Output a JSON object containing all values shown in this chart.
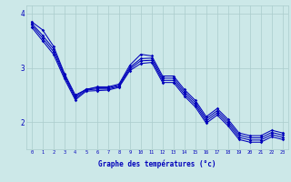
{
  "xlabel": "Graphe des températures (°c)",
  "background_color": "#cce8e8",
  "grid_color": "#aacccc",
  "line_color": "#0000bb",
  "x": [
    0,
    1,
    2,
    3,
    4,
    5,
    6,
    7,
    8,
    9,
    10,
    11,
    12,
    13,
    14,
    15,
    16,
    17,
    18,
    19,
    20,
    21,
    22,
    23
  ],
  "line1": [
    3.85,
    3.7,
    3.4,
    2.9,
    2.5,
    2.6,
    2.65,
    2.65,
    2.7,
    3.05,
    3.25,
    3.22,
    2.85,
    2.85,
    2.6,
    2.4,
    2.1,
    2.25,
    2.05,
    1.8,
    1.75,
    1.75,
    1.85,
    1.8
  ],
  "line2": [
    3.82,
    3.6,
    3.35,
    2.87,
    2.47,
    2.61,
    2.63,
    2.63,
    2.68,
    3.01,
    3.17,
    3.18,
    2.81,
    2.81,
    2.56,
    2.36,
    2.06,
    2.21,
    2.01,
    1.76,
    1.71,
    1.71,
    1.81,
    1.76
  ],
  "line3": [
    3.79,
    3.55,
    3.3,
    2.84,
    2.44,
    2.59,
    2.61,
    2.61,
    2.66,
    2.98,
    3.13,
    3.14,
    2.77,
    2.77,
    2.52,
    2.32,
    2.02,
    2.17,
    1.97,
    1.72,
    1.67,
    1.67,
    1.77,
    1.72
  ],
  "line4": [
    3.75,
    3.5,
    3.25,
    2.8,
    2.41,
    2.57,
    2.58,
    2.59,
    2.64,
    2.95,
    3.08,
    3.1,
    2.73,
    2.73,
    2.48,
    2.28,
    1.98,
    2.13,
    1.93,
    1.68,
    1.63,
    1.63,
    1.73,
    1.68
  ],
  "ylim": [
    1.5,
    4.15
  ],
  "yticks": [
    2,
    3,
    4
  ],
  "xtick_labels": [
    "0",
    "1",
    "2",
    "3",
    "4",
    "5",
    "6",
    "7",
    "8",
    "9",
    "10",
    "11",
    "12",
    "13",
    "14",
    "15",
    "16",
    "17",
    "18",
    "19",
    "20",
    "21",
    "22",
    "23"
  ],
  "figsize": [
    3.2,
    2.0
  ],
  "dpi": 100
}
